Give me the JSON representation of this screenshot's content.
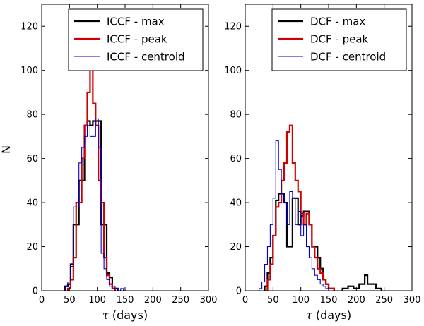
{
  "chart_data": {
    "type": "step-histogram",
    "ylabel": "N",
    "xlabel_symbol": "τ",
    "xlabel_unit": "(days)",
    "xlim": [
      0,
      300
    ],
    "ylim": [
      0,
      130
    ],
    "xticks": [
      0,
      50,
      100,
      150,
      200,
      250,
      300
    ],
    "yticks": [
      0,
      20,
      40,
      60,
      80,
      100,
      120
    ],
    "panels": [
      {
        "name": "iccf",
        "series": [
          {
            "name": "ICCF - max",
            "color": "#000000",
            "linewidth": "thick",
            "bins": [
              [
                42,
                47,
                2
              ],
              [
                47,
                52,
                3
              ],
              [
                52,
                57,
                12
              ],
              [
                57,
                62,
                30
              ],
              [
                62,
                67,
                30
              ],
              [
                67,
                72,
                50
              ],
              [
                72,
                77,
                50
              ],
              [
                77,
                82,
                75
              ],
              [
                82,
                87,
                77
              ],
              [
                87,
                92,
                75
              ],
              [
                92,
                97,
                77
              ],
              [
                97,
                102,
                77
              ],
              [
                102,
                107,
                77
              ],
              [
                107,
                112,
                30
              ],
              [
                112,
                117,
                30
              ],
              [
                117,
                122,
                8
              ],
              [
                122,
                127,
                6
              ],
              [
                127,
                132,
                1
              ],
              [
                132,
                137,
                1
              ]
            ]
          },
          {
            "name": "ICCF - peak",
            "color": "#d00000",
            "linewidth": "thick",
            "bins": [
              [
                47,
                52,
                1
              ],
              [
                52,
                57,
                5
              ],
              [
                57,
                62,
                15
              ],
              [
                62,
                67,
                40
              ],
              [
                67,
                72,
                40
              ],
              [
                72,
                77,
                60
              ],
              [
                77,
                82,
                75
              ],
              [
                82,
                87,
                90
              ],
              [
                87,
                92,
                100
              ],
              [
                92,
                97,
                85
              ],
              [
                97,
                102,
                75
              ],
              [
                102,
                107,
                50
              ],
              [
                107,
                112,
                40
              ],
              [
                112,
                117,
                15
              ],
              [
                117,
                122,
                7
              ],
              [
                122,
                127,
                3
              ],
              [
                127,
                132,
                1
              ]
            ]
          },
          {
            "name": "ICCF - centroid",
            "color": "#0000cc",
            "linewidth": "thin",
            "bins": [
              [
                42,
                47,
                2
              ],
              [
                47,
                52,
                4
              ],
              [
                52,
                57,
                11
              ],
              [
                57,
                62,
                38
              ],
              [
                62,
                67,
                38
              ],
              [
                67,
                72,
                58
              ],
              [
                72,
                77,
                65
              ],
              [
                77,
                82,
                70
              ],
              [
                82,
                87,
                75
              ],
              [
                87,
                92,
                70
              ],
              [
                92,
                97,
                70
              ],
              [
                97,
                102,
                78
              ],
              [
                102,
                107,
                65
              ],
              [
                107,
                112,
                17
              ],
              [
                112,
                117,
                10
              ],
              [
                117,
                122,
                5
              ],
              [
                122,
                127,
                2
              ],
              [
                127,
                132,
                2
              ],
              [
                132,
                137,
                1
              ],
              [
                142,
                147,
                1
              ]
            ]
          }
        ]
      },
      {
        "name": "dcf",
        "series": [
          {
            "name": "DCF - max",
            "color": "#000000",
            "linewidth": "thick",
            "bins": [
              [
                35,
                40,
                2
              ],
              [
                40,
                45,
                8
              ],
              [
                45,
                50,
                15
              ],
              [
                50,
                55,
                25
              ],
              [
                55,
                60,
                41
              ],
              [
                60,
                65,
                44
              ],
              [
                65,
                70,
                44
              ],
              [
                70,
                75,
                40
              ],
              [
                75,
                80,
                20
              ],
              [
                80,
                85,
                20
              ],
              [
                85,
                90,
                42
              ],
              [
                90,
                95,
                42
              ],
              [
                95,
                100,
                30
              ],
              [
                100,
                105,
                34
              ],
              [
                105,
                110,
                36
              ],
              [
                110,
                115,
                36
              ],
              [
                115,
                120,
                30
              ],
              [
                120,
                125,
                20
              ],
              [
                125,
                130,
                20
              ],
              [
                130,
                135,
                15
              ],
              [
                135,
                140,
                10
              ],
              [
                140,
                145,
                5
              ],
              [
                145,
                150,
                3
              ],
              [
                150,
                160,
                1
              ],
              [
                175,
                185,
                1
              ],
              [
                185,
                195,
                2
              ],
              [
                195,
                205,
                1
              ],
              [
                205,
                215,
                3
              ],
              [
                215,
                220,
                7
              ],
              [
                220,
                225,
                3
              ],
              [
                225,
                235,
                3
              ],
              [
                235,
                245,
                1
              ]
            ]
          },
          {
            "name": "DCF - peak",
            "color": "#d00000",
            "linewidth": "thick",
            "bins": [
              [
                40,
                45,
                5
              ],
              [
                45,
                50,
                12
              ],
              [
                50,
                55,
                25
              ],
              [
                55,
                60,
                38
              ],
              [
                60,
                65,
                40
              ],
              [
                65,
                70,
                50
              ],
              [
                70,
                75,
                58
              ],
              [
                75,
                80,
                72
              ],
              [
                80,
                85,
                75
              ],
              [
                85,
                90,
                58
              ],
              [
                90,
                95,
                50
              ],
              [
                95,
                100,
                45
              ],
              [
                100,
                105,
                35
              ],
              [
                105,
                110,
                30
              ],
              [
                110,
                115,
                35
              ],
              [
                115,
                120,
                30
              ],
              [
                120,
                125,
                20
              ],
              [
                125,
                130,
                15
              ],
              [
                130,
                135,
                10
              ],
              [
                135,
                140,
                8
              ],
              [
                140,
                145,
                5
              ],
              [
                145,
                150,
                3
              ],
              [
                150,
                160,
                1
              ]
            ]
          },
          {
            "name": "DCF - centroid",
            "color": "#0000cc",
            "linewidth": "thin",
            "bins": [
              [
                25,
                30,
                1
              ],
              [
                30,
                35,
                4
              ],
              [
                35,
                40,
                12
              ],
              [
                40,
                45,
                20
              ],
              [
                45,
                50,
                30
              ],
              [
                50,
                55,
                42
              ],
              [
                55,
                60,
                68
              ],
              [
                60,
                65,
                55
              ],
              [
                65,
                70,
                44
              ],
              [
                70,
                75,
                40
              ],
              [
                75,
                80,
                30
              ],
              [
                80,
                85,
                45
              ],
              [
                85,
                90,
                42
              ],
              [
                90,
                95,
                30
              ],
              [
                95,
                100,
                36
              ],
              [
                100,
                105,
                25
              ],
              [
                105,
                110,
                30
              ],
              [
                110,
                115,
                20
              ],
              [
                115,
                120,
                15
              ],
              [
                120,
                125,
                10
              ],
              [
                125,
                130,
                7
              ],
              [
                130,
                135,
                5
              ],
              [
                135,
                140,
                3
              ],
              [
                140,
                145,
                2
              ],
              [
                145,
                150,
                1
              ]
            ]
          }
        ]
      }
    ]
  }
}
